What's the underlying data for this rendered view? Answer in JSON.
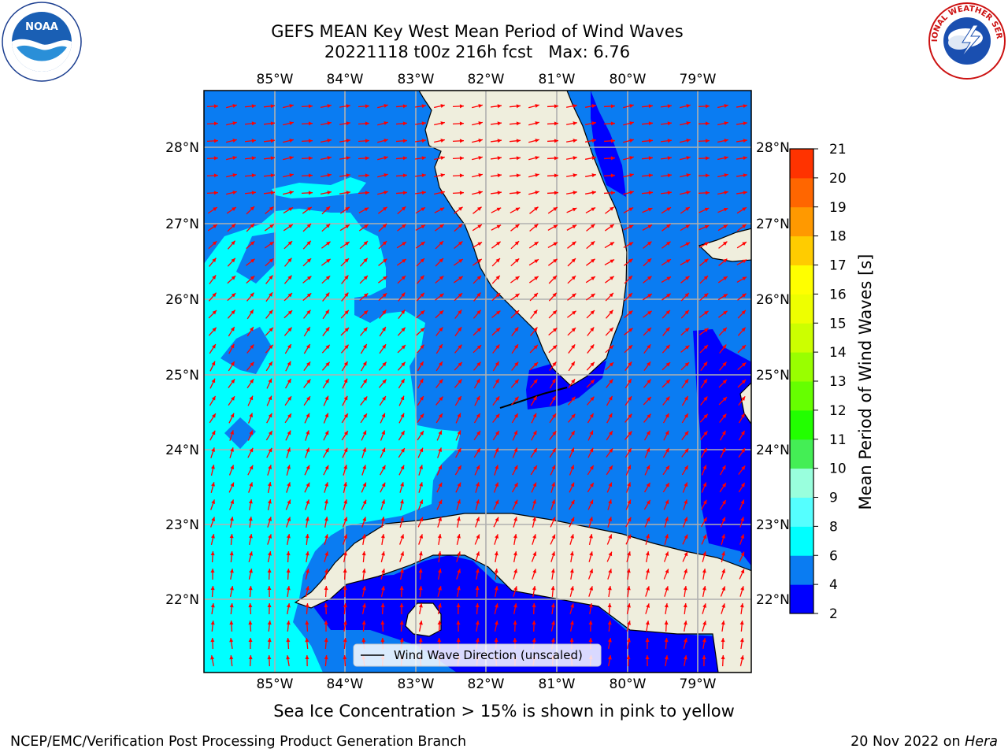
{
  "title": {
    "line1": "GEFS MEAN Key West Mean Period of Wind Waves",
    "line2": "20221118 t00z 216h fcst   Max: 6.76"
  },
  "map": {
    "lon_labels": [
      "85°W",
      "84°W",
      "83°W",
      "82°W",
      "81°W",
      "80°W",
      "79°W"
    ],
    "lat_labels": [
      "28°N",
      "27°N",
      "26°N",
      "25°N",
      "24°N",
      "23°N",
      "22°N"
    ],
    "legend_label": "Wind Wave Direction (unscaled)",
    "colors": {
      "land": "#efeedd",
      "band_2_4": "#0000ff",
      "band_4_6": "#0a7cf2",
      "band_6_8": "#00ffff",
      "arrow": "#ff0000",
      "grid": "#b0b0b0"
    }
  },
  "colorbar": {
    "label": "Mean Period of Wind Waves [s]",
    "ticks": [
      "2",
      "4",
      "6",
      "8",
      "9",
      "10",
      "11",
      "12",
      "13",
      "14",
      "15",
      "16",
      "17",
      "18",
      "19",
      "20",
      "21"
    ],
    "colors": [
      "#0000ff",
      "#0a7cf2",
      "#00ffff",
      "#55ffff",
      "#99ffdd",
      "#44ee55",
      "#22ff00",
      "#66ff00",
      "#99ff00",
      "#ccff00",
      "#eeff00",
      "#ffff00",
      "#ffcc00",
      "#ff9900",
      "#ff6600",
      "#ff3300",
      "#ff0000"
    ]
  },
  "notes": {
    "ice": "Sea Ice Concentration > 15% is shown in pink to yellow",
    "footer_left": "NCEP/EMC/Verification Post Processing Product Generation Branch",
    "footer_date": "20 Nov 2022 on ",
    "footer_machine": "Hera"
  },
  "logos": {
    "noaa": "NOAA",
    "nws": "NATIONAL WEATHER SERVICE"
  }
}
